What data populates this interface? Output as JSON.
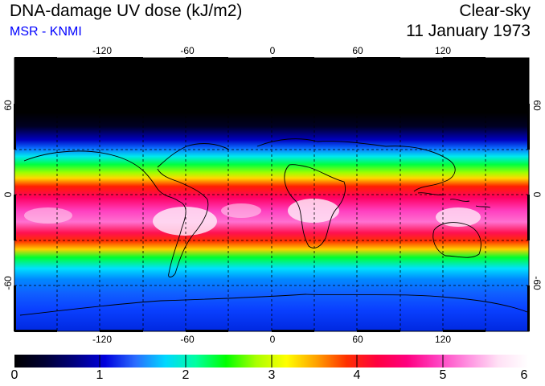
{
  "header": {
    "title": "DNA-damage UV dose (kJ/m2)",
    "source": "MSR - KNMI",
    "condition": "Clear-sky",
    "date": "11 January 1973"
  },
  "map": {
    "longitude_labels": [
      "-120",
      "-60",
      "0",
      "60",
      "120"
    ],
    "latitude_labels": [
      "60",
      "0",
      "-60"
    ],
    "gridline_longitudes": [
      -150,
      -120,
      -90,
      -60,
      -30,
      0,
      30,
      60,
      90,
      120,
      150
    ],
    "gridline_latitudes": [
      60,
      30,
      0,
      -30,
      -60
    ],
    "extent": {
      "lon_min": -180,
      "lon_max": 180,
      "lat_min": -90,
      "lat_max": 90
    }
  },
  "colorbar": {
    "tick_labels": [
      "0",
      "1",
      "2",
      "3",
      "4",
      "5",
      "6"
    ],
    "min": 0,
    "max": 6,
    "colors": [
      "#000000",
      "#000033",
      "#000080",
      "#0000dd",
      "#2a6cff",
      "#00d8ff",
      "#00ffa0",
      "#00ff00",
      "#aaff00",
      "#ffff00",
      "#ffa000",
      "#ff3000",
      "#ff0040",
      "#ff0080",
      "#ff40c0",
      "#ff90e0",
      "#ffe0f5",
      "#ffffff"
    ]
  }
}
